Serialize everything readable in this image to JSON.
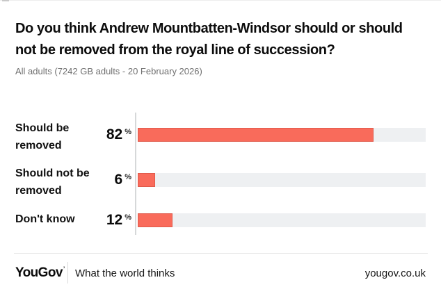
{
  "page": {
    "title_lines": [
      "Do you think Andrew Mountbatten-Windsor should or should",
      "not be removed from the royal line of succession?"
    ],
    "subtitle": "All adults (7242 GB adults - 20 February 2026)"
  },
  "chart": {
    "rows": [
      {
        "label": "Should be removed",
        "value": "82",
        "unit": "%",
        "pct": 82
      },
      {
        "label": "Should not be removed",
        "value": "6",
        "unit": "%",
        "pct": 6
      },
      {
        "label": "Don't know",
        "value": "12",
        "unit": "%",
        "pct": 12
      }
    ],
    "colors": {
      "bar": "#f96b5b",
      "track": "#eef0f2",
      "axis": "#d6d8d9"
    }
  },
  "footer": {
    "logo": "YouGov",
    "logo_mark": "’",
    "tagline": "What the world thinks",
    "url": "yougov.co.uk"
  },
  "chart_data": {
    "type": "bar",
    "orientation": "horizontal",
    "title": "Do you think Andrew Mountbatten-Windsor should or should not be removed from the royal line of succession?",
    "subtitle": "All adults (7242 GB adults - 20 February 2026)",
    "categories": [
      "Should be removed",
      "Should not be removed",
      "Don't know"
    ],
    "values": [
      82,
      6,
      12
    ],
    "unit": "%",
    "xlim": [
      0,
      100
    ],
    "grid": false,
    "legend": false,
    "bar_color": "#f96b5b",
    "track_color": "#eef0f2"
  }
}
